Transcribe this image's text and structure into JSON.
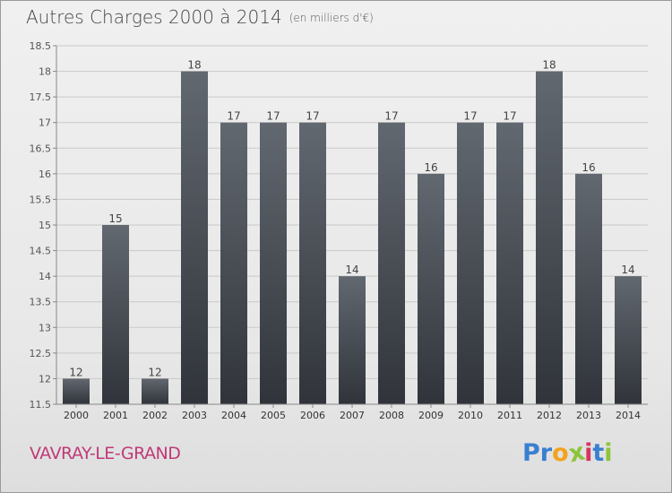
{
  "title": "Autres Charges 2000 à 2014",
  "unit": "(en milliers d'€)",
  "city": "VAVRAY-LE-GRAND",
  "brand": {
    "letters": [
      "P",
      "r",
      "o",
      "x",
      "i",
      "t",
      "i"
    ],
    "colors": [
      "#3a7fd0",
      "#3a7fd0",
      "#f2a21c",
      "#8cc43a",
      "#d6345e",
      "#3a7fd0",
      "#8cc43a"
    ]
  },
  "colors": {
    "bar_top": "#626870",
    "bar_bottom": "#30343a",
    "grid": "#c9c9c9",
    "axis_text": "#555555"
  },
  "chart_data": {
    "type": "bar",
    "title": "Autres Charges 2000 à 2014",
    "subtitle": "(en milliers d'€)",
    "xlabel": "",
    "ylabel": "",
    "categories": [
      "2000",
      "2001",
      "2002",
      "2003",
      "2004",
      "2005",
      "2006",
      "2007",
      "2008",
      "2009",
      "2010",
      "2011",
      "2012",
      "2013",
      "2014"
    ],
    "values": [
      12,
      15,
      12,
      18,
      17,
      17,
      17,
      14,
      17,
      16,
      17,
      17,
      18,
      16,
      14
    ],
    "labels": [
      "12",
      "15",
      "12",
      "18",
      "17",
      "17",
      "17",
      "14",
      "17",
      "16",
      "17",
      "17",
      "18",
      "16",
      "14"
    ],
    "ylim": [
      11.5,
      18.5
    ],
    "yticks": [
      "11.5",
      "12",
      "12.5",
      "13",
      "13.5",
      "14",
      "14.5",
      "15",
      "15.5",
      "16",
      "16.5",
      "17",
      "17.5",
      "18",
      "18.5"
    ],
    "grid": true
  }
}
